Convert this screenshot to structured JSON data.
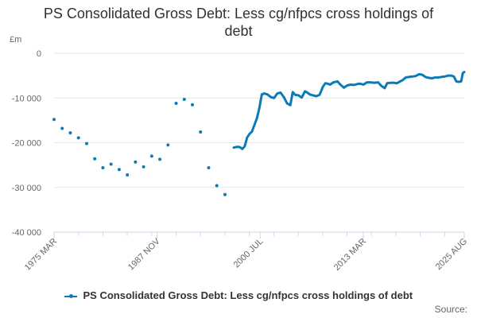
{
  "chart_data": {
    "type": "line",
    "title_line1": "PS Consolidated Gross Debt: Less cg/nfpcs cross holdings of",
    "title_line2": "debt",
    "unit_label": "£m",
    "ylim": [
      -40000,
      0
    ],
    "yticks": [
      {
        "value": 0,
        "label": "0"
      },
      {
        "value": -10000,
        "label": "-10 000"
      },
      {
        "value": -20000,
        "label": "-20 000"
      },
      {
        "value": -30000,
        "label": "-30 000"
      },
      {
        "value": -40000,
        "label": "-40 000"
      }
    ],
    "xlim": [
      1975.17,
      2025.58
    ],
    "xticks": [
      {
        "value": 1975.17,
        "label": "1975 MAR"
      },
      {
        "value": 1987.83,
        "label": "1987 NOV"
      },
      {
        "value": 2000.5,
        "label": "2000 JUL"
      },
      {
        "value": 2013.17,
        "label": "2013 MAR"
      },
      {
        "value": 2025.58,
        "label": "2025 AUG"
      }
    ],
    "grid": true,
    "legend_position": "bottom",
    "color": "#0d7ab8",
    "series": [
      {
        "name": "PS Consolidated Gross Debt: Less cg/nfpcs cross holdings of debt",
        "points_isolated": [
          [
            1975.17,
            -14800
          ],
          [
            1976.17,
            -16800
          ],
          [
            1977.17,
            -17800
          ],
          [
            1978.17,
            -18900
          ],
          [
            1979.17,
            -20200
          ],
          [
            1980.17,
            -23600
          ],
          [
            1981.17,
            -25600
          ],
          [
            1982.17,
            -24800
          ],
          [
            1983.17,
            -26000
          ],
          [
            1984.17,
            -27200
          ],
          [
            1985.17,
            -24300
          ],
          [
            1986.17,
            -25400
          ],
          [
            1987.17,
            -23000
          ],
          [
            1988.17,
            -23700
          ],
          [
            1989.17,
            -20500
          ],
          [
            1990.17,
            -11200
          ],
          [
            1991.17,
            -10300
          ],
          [
            1992.17,
            -11500
          ],
          [
            1993.17,
            -17600
          ],
          [
            1994.17,
            -25600
          ],
          [
            1995.17,
            -29600
          ],
          [
            1996.17,
            -31600
          ]
        ],
        "points_line": [
          [
            1997.25,
            -21100
          ],
          [
            1997.7,
            -20900
          ],
          [
            1998.0,
            -21000
          ],
          [
            1998.3,
            -21400
          ],
          [
            1998.6,
            -20800
          ],
          [
            1998.9,
            -18800
          ],
          [
            1999.2,
            -18000
          ],
          [
            1999.5,
            -17500
          ],
          [
            1999.8,
            -16000
          ],
          [
            2000.1,
            -14500
          ],
          [
            2000.4,
            -12200
          ],
          [
            2000.7,
            -9200
          ],
          [
            2001.0,
            -9000
          ],
          [
            2001.4,
            -9200
          ],
          [
            2001.8,
            -9800
          ],
          [
            2002.2,
            -10000
          ],
          [
            2002.6,
            -9000
          ],
          [
            2003.0,
            -8800
          ],
          [
            2003.4,
            -9800
          ],
          [
            2003.8,
            -11200
          ],
          [
            2004.2,
            -11600
          ],
          [
            2004.5,
            -8700
          ],
          [
            2004.8,
            -9300
          ],
          [
            2005.2,
            -9400
          ],
          [
            2005.6,
            -9900
          ],
          [
            2006.0,
            -8500
          ],
          [
            2006.3,
            -8800
          ],
          [
            2006.6,
            -9200
          ],
          [
            2007.0,
            -9400
          ],
          [
            2007.4,
            -9600
          ],
          [
            2007.8,
            -9300
          ],
          [
            2008.2,
            -7500
          ],
          [
            2008.5,
            -6700
          ],
          [
            2008.8,
            -6800
          ],
          [
            2009.1,
            -7000
          ],
          [
            2009.5,
            -6500
          ],
          [
            2010.0,
            -6300
          ],
          [
            2010.4,
            -7100
          ],
          [
            2010.8,
            -7700
          ],
          [
            2011.2,
            -7200
          ],
          [
            2011.6,
            -7000
          ],
          [
            2012.0,
            -7100
          ],
          [
            2012.4,
            -6900
          ],
          [
            2012.8,
            -6800
          ],
          [
            2013.2,
            -7000
          ],
          [
            2013.6,
            -6500
          ],
          [
            2014.0,
            -6500
          ],
          [
            2014.5,
            -6600
          ],
          [
            2015.0,
            -6500
          ],
          [
            2015.4,
            -7300
          ],
          [
            2015.8,
            -7800
          ],
          [
            2016.1,
            -6700
          ],
          [
            2016.5,
            -6600
          ],
          [
            2016.9,
            -6600
          ],
          [
            2017.3,
            -6700
          ],
          [
            2017.7,
            -6300
          ],
          [
            2018.0,
            -6000
          ],
          [
            2018.4,
            -5400
          ],
          [
            2018.8,
            -5300
          ],
          [
            2019.2,
            -5200
          ],
          [
            2019.6,
            -5100
          ],
          [
            2020.0,
            -4700
          ],
          [
            2020.4,
            -4800
          ],
          [
            2020.8,
            -5300
          ],
          [
            2021.2,
            -5500
          ],
          [
            2021.6,
            -5600
          ],
          [
            2022.0,
            -5400
          ],
          [
            2022.4,
            -5400
          ],
          [
            2022.8,
            -5300
          ],
          [
            2023.2,
            -5200
          ],
          [
            2023.6,
            -5000
          ],
          [
            2024.0,
            -5000
          ],
          [
            2024.3,
            -5200
          ],
          [
            2024.6,
            -6300
          ],
          [
            2024.9,
            -6400
          ],
          [
            2025.2,
            -6300
          ],
          [
            2025.4,
            -4400
          ],
          [
            2025.58,
            -4200
          ]
        ]
      }
    ]
  },
  "legend": {
    "label": "PS Consolidated Gross Debt: Less cg/nfpcs cross holdings of debt"
  },
  "footer": {
    "source_label": "Source:"
  }
}
